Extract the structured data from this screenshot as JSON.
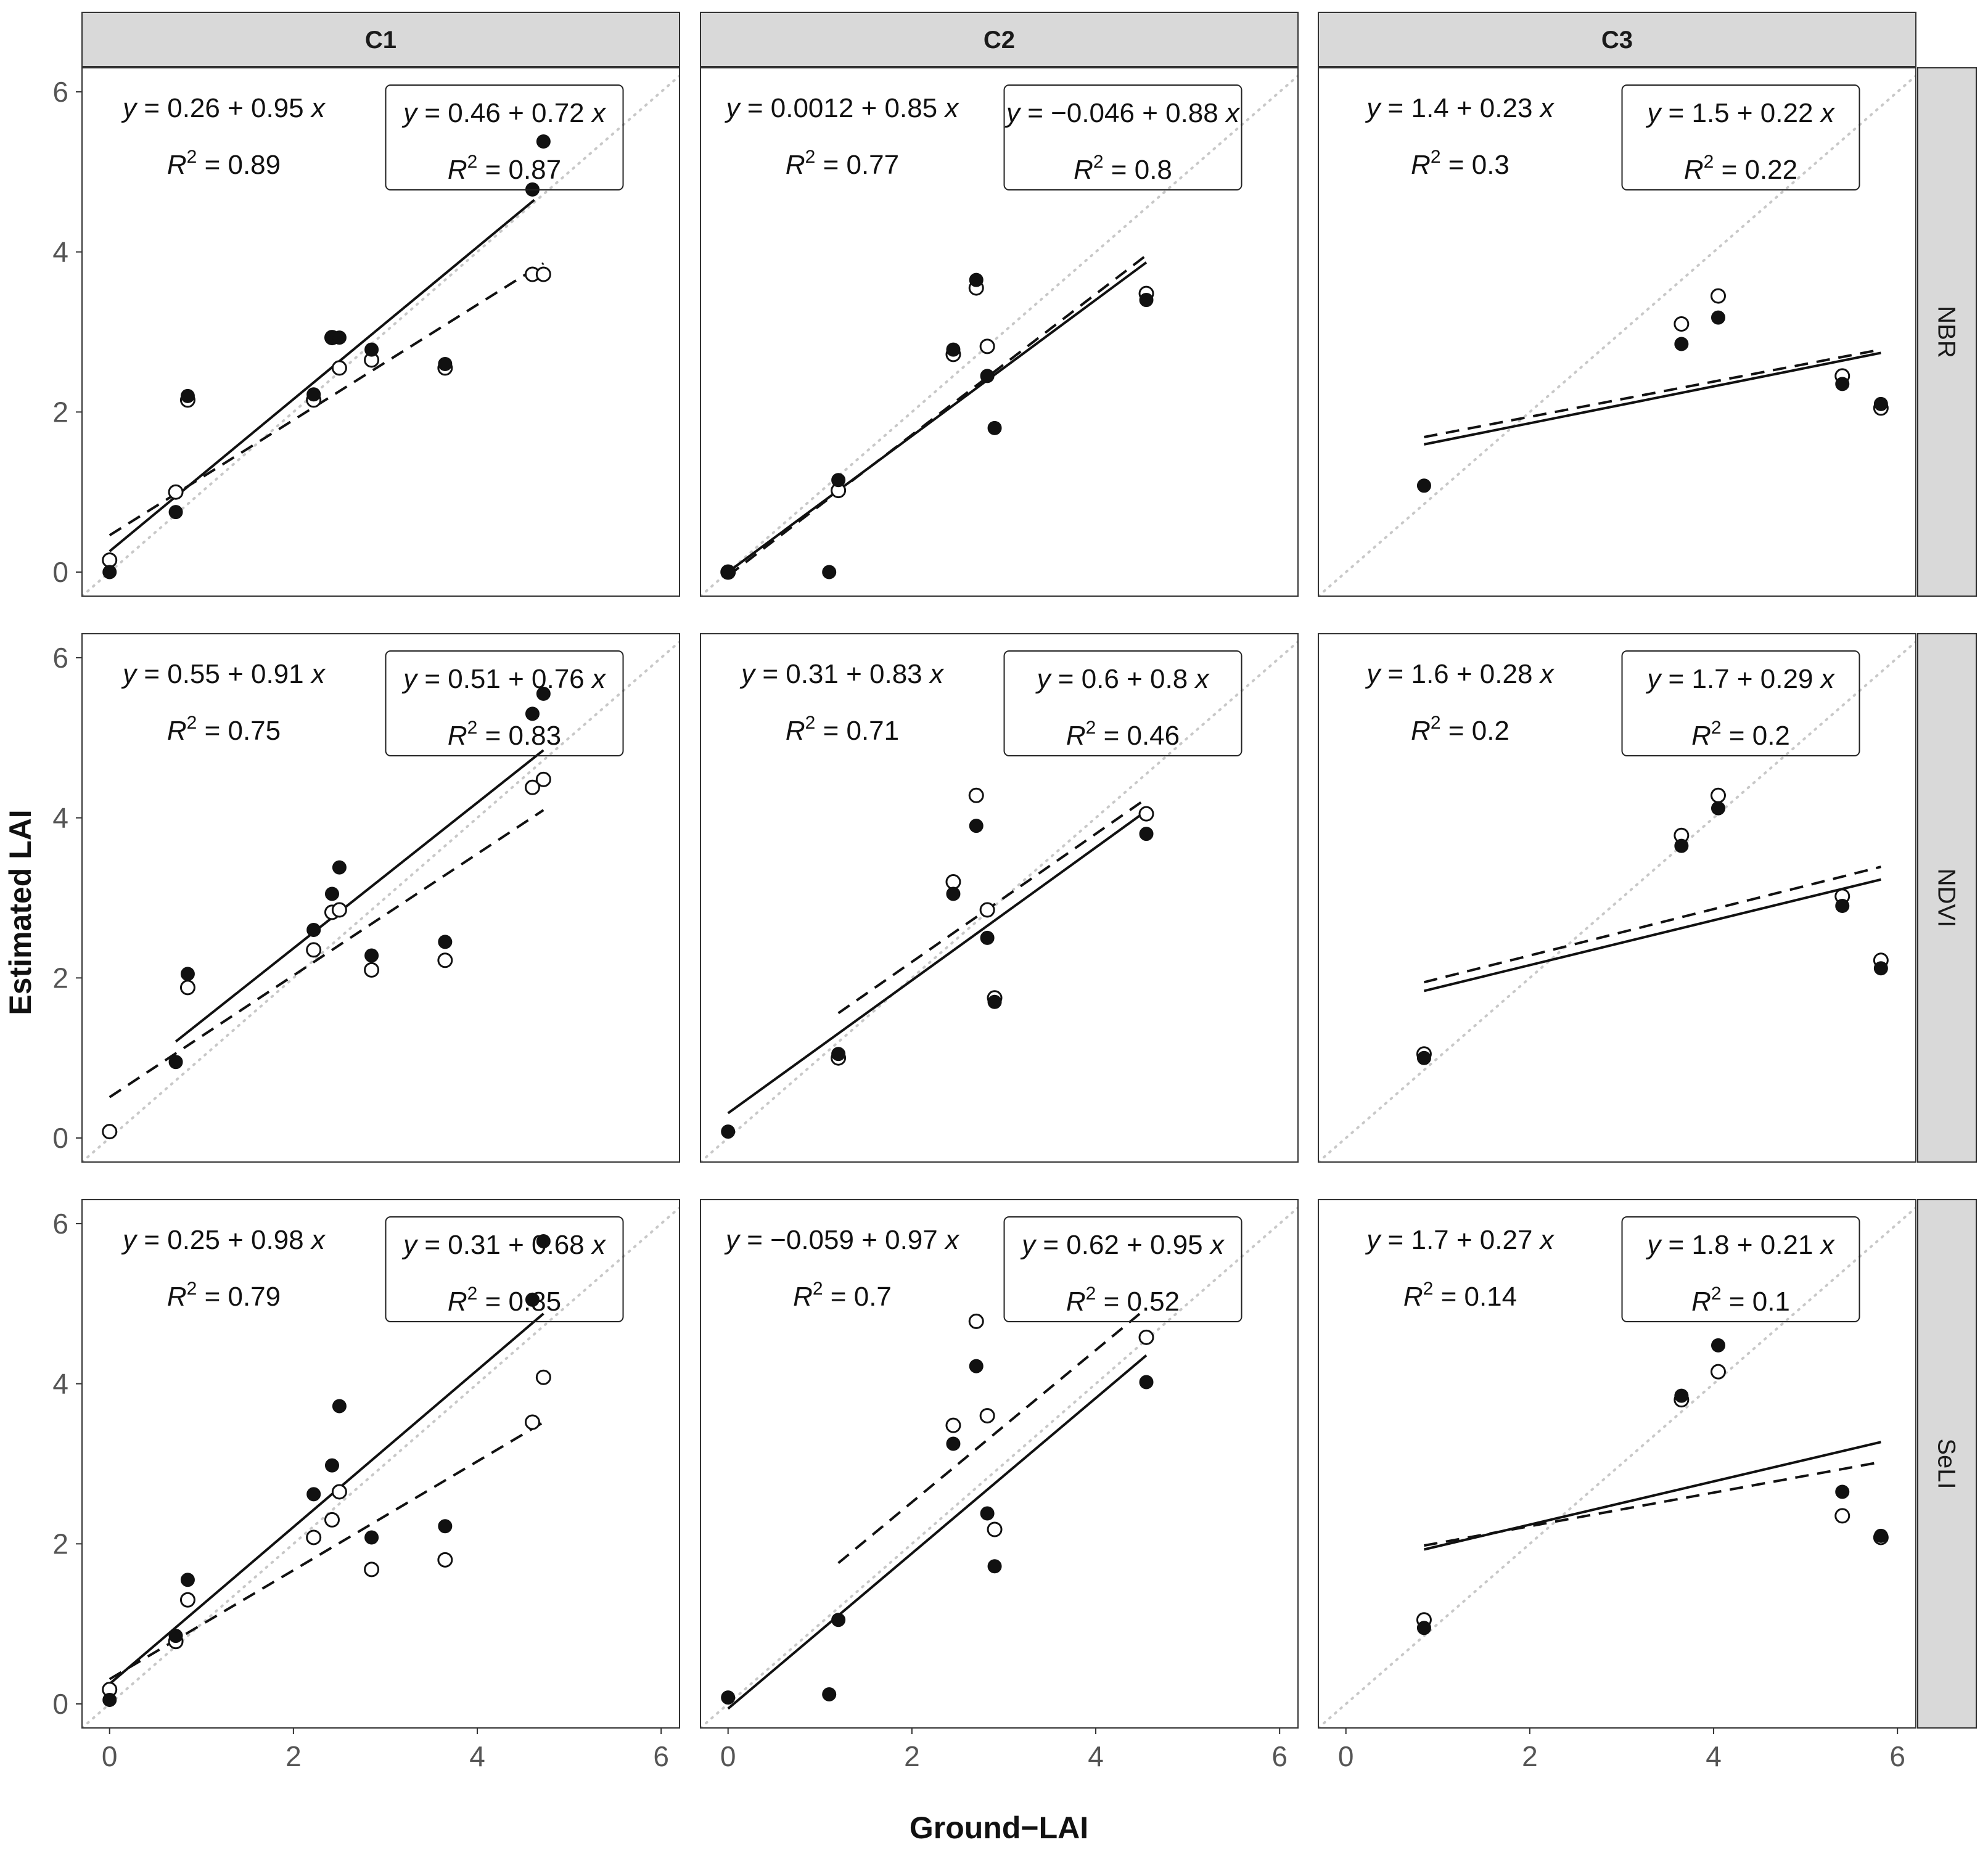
{
  "chart_data": {
    "type": "scatter",
    "xlabel": "Ground−LAI",
    "ylabel": "Estimated LAI",
    "xlim": [
      -0.3,
      6.2
    ],
    "ylim": [
      -0.3,
      6.3
    ],
    "xticks": [
      0,
      2,
      4,
      6
    ],
    "yticks": [
      0,
      2,
      4,
      6
    ],
    "columns": [
      "C1",
      "C2",
      "C3"
    ],
    "rows": [
      "NBR",
      "NDVI",
      "SeLI"
    ],
    "legend": "none",
    "grid": false,
    "reference_line": "1:1 dotted",
    "series_styles": {
      "filled": "solid circles, solid regression line",
      "open": "open circles, dashed regression line"
    },
    "panels": [
      {
        "col": "C1",
        "row": "NBR",
        "filled": {
          "x": [
            0,
            0.72,
            0.85,
            2.22,
            2.42,
            2.5,
            2.85,
            3.65,
            4.6,
            4.72
          ],
          "y": [
            0,
            0.75,
            2.2,
            2.22,
            2.93,
            2.93,
            2.78,
            2.6,
            4.78,
            5.38
          ]
        },
        "open": {
          "x": [
            0,
            0.72,
            0.85,
            2.22,
            2.42,
            2.5,
            2.85,
            3.65,
            4.6,
            4.72
          ],
          "y": [
            0.15,
            1.0,
            2.15,
            2.15,
            2.93,
            2.55,
            2.65,
            2.55,
            3.72,
            3.72
          ]
        },
        "fit_filled": {
          "intercept": 0.26,
          "slope": 0.95,
          "x_range": [
            0,
            4.62
          ]
        },
        "fit_open": {
          "intercept": 0.46,
          "slope": 0.72,
          "x_range": [
            0,
            4.72
          ]
        },
        "eq_filled": {
          "a": "0.26",
          "op": "+",
          "b": "0.95",
          "r2": "0.89"
        },
        "eq_open": {
          "a": "0.46",
          "op": "+",
          "b": "0.72",
          "r2": "0.87"
        }
      },
      {
        "col": "C2",
        "row": "NBR",
        "filled": {
          "x": [
            0,
            1.1,
            1.2,
            2.45,
            2.7,
            2.82,
            2.9,
            4.55
          ],
          "y": [
            0,
            0,
            1.15,
            2.78,
            3.65,
            2.45,
            1.8,
            3.4
          ]
        },
        "open": {
          "x": [
            0,
            1.2,
            2.45,
            2.7,
            2.82,
            4.55
          ],
          "y": [
            0,
            1.02,
            2.72,
            3.55,
            2.82,
            3.48
          ]
        },
        "fit_filled": {
          "intercept": 0.0012,
          "slope": 0.85,
          "x_range": [
            0,
            4.55
          ]
        },
        "fit_open": {
          "intercept": -0.046,
          "slope": 0.88,
          "x_range": [
            0,
            4.55
          ]
        },
        "eq_filled": {
          "a": "0.0012",
          "op": "+",
          "b": "0.85",
          "r2": "0.77"
        },
        "eq_open": {
          "a": "−0.046",
          "op": "+",
          "b": "0.88",
          "r2": "0.8"
        }
      },
      {
        "col": "C3",
        "row": "NBR",
        "filled": {
          "x": [
            0.85,
            3.65,
            4.05,
            5.4,
            5.82
          ],
          "y": [
            1.08,
            2.85,
            3.18,
            2.35,
            2.1
          ]
        },
        "open": {
          "x": [
            3.65,
            4.05,
            5.4,
            5.82
          ],
          "y": [
            3.1,
            3.45,
            2.45,
            2.05
          ]
        },
        "fit_filled": {
          "intercept": 1.4,
          "slope": 0.23,
          "x_range": [
            0.85,
            5.82
          ]
        },
        "fit_open": {
          "intercept": 1.5,
          "slope": 0.22,
          "x_range": [
            0.85,
            5.82
          ]
        },
        "eq_filled": {
          "a": "1.4",
          "op": "+",
          "b": "0.23",
          "r2": "0.3"
        },
        "eq_open": {
          "a": "1.5",
          "op": "+",
          "b": "0.22",
          "r2": "0.22"
        }
      },
      {
        "col": "C1",
        "row": "NDVI",
        "filled": {
          "x": [
            0.72,
            0.85,
            2.22,
            2.42,
            2.5,
            2.85,
            3.65,
            4.6,
            4.72
          ],
          "y": [
            0.95,
            2.05,
            2.6,
            3.05,
            3.38,
            2.28,
            2.45,
            5.3,
            5.55
          ]
        },
        "open": {
          "x": [
            0,
            0.85,
            2.22,
            2.42,
            2.5,
            2.85,
            3.65,
            4.6,
            4.72
          ],
          "y": [
            0.08,
            1.88,
            2.35,
            2.82,
            2.85,
            2.1,
            2.22,
            4.38,
            4.48
          ]
        },
        "fit_filled": {
          "intercept": 0.55,
          "slope": 0.91,
          "x_range": [
            0.72,
            4.72
          ]
        },
        "fit_open": {
          "intercept": 0.51,
          "slope": 0.76,
          "x_range": [
            0,
            4.72
          ]
        },
        "eq_filled": {
          "a": "0.55",
          "op": "+",
          "b": "0.91",
          "r2": "0.75"
        },
        "eq_open": {
          "a": "0.51",
          "op": "+",
          "b": "0.76",
          "r2": "0.83"
        }
      },
      {
        "col": "C2",
        "row": "NDVI",
        "filled": {
          "x": [
            0,
            1.2,
            2.45,
            2.7,
            2.82,
            2.9,
            4.55
          ],
          "y": [
            0.08,
            1.05,
            3.05,
            3.9,
            2.5,
            1.7,
            3.8
          ]
        },
        "open": {
          "x": [
            1.2,
            2.45,
            2.7,
            2.82,
            2.9,
            4.55
          ],
          "y": [
            1.0,
            3.2,
            4.28,
            2.85,
            1.75,
            4.05
          ]
        },
        "fit_filled": {
          "intercept": 0.31,
          "slope": 0.83,
          "x_range": [
            0,
            4.55
          ]
        },
        "fit_open": {
          "intercept": 0.6,
          "slope": 0.8,
          "x_range": [
            1.2,
            4.55
          ]
        },
        "eq_filled": {
          "a": "0.31",
          "op": "+",
          "b": "0.83",
          "r2": "0.71"
        },
        "eq_open": {
          "a": "0.6",
          "op": "+",
          "b": "0.8",
          "r2": "0.46"
        }
      },
      {
        "col": "C3",
        "row": "NDVI",
        "filled": {
          "x": [
            0.85,
            3.65,
            4.05,
            5.4,
            5.82
          ],
          "y": [
            1.0,
            3.65,
            4.12,
            2.9,
            2.12
          ]
        },
        "open": {
          "x": [
            0.85,
            3.65,
            4.05,
            5.4,
            5.82
          ],
          "y": [
            1.05,
            3.78,
            4.28,
            3.02,
            2.22
          ]
        },
        "fit_filled": {
          "intercept": 1.6,
          "slope": 0.28,
          "x_range": [
            0.85,
            5.82
          ]
        },
        "fit_open": {
          "intercept": 1.7,
          "slope": 0.29,
          "x_range": [
            0.85,
            5.82
          ]
        },
        "eq_filled": {
          "a": "1.6",
          "op": "+",
          "b": "0.28",
          "r2": "0.2"
        },
        "eq_open": {
          "a": "1.7",
          "op": "+",
          "b": "0.29",
          "r2": "0.2"
        }
      },
      {
        "col": "C1",
        "row": "SeLI",
        "filled": {
          "x": [
            0,
            0.72,
            0.85,
            2.22,
            2.42,
            2.5,
            2.85,
            3.65,
            4.6,
            4.72
          ],
          "y": [
            0.05,
            0.85,
            1.55,
            2.62,
            2.98,
            3.72,
            2.08,
            2.22,
            5.05,
            5.78
          ]
        },
        "open": {
          "x": [
            0,
            0.72,
            0.85,
            2.22,
            2.42,
            2.5,
            2.85,
            3.65,
            4.6,
            4.72
          ],
          "y": [
            0.18,
            0.78,
            1.3,
            2.08,
            2.3,
            2.65,
            1.68,
            1.8,
            3.52,
            4.08
          ]
        },
        "fit_filled": {
          "intercept": 0.25,
          "slope": 0.98,
          "x_range": [
            0,
            4.72
          ]
        },
        "fit_open": {
          "intercept": 0.31,
          "slope": 0.68,
          "x_range": [
            0,
            4.72
          ]
        },
        "eq_filled": {
          "a": "0.25",
          "op": "+",
          "b": "0.98",
          "r2": "0.79"
        },
        "eq_open": {
          "a": "0.31",
          "op": "+",
          "b": "0.68",
          "r2": "0.85"
        }
      },
      {
        "col": "C2",
        "row": "SeLI",
        "filled": {
          "x": [
            0,
            1.1,
            1.2,
            2.45,
            2.7,
            2.82,
            2.9,
            4.55
          ],
          "y": [
            0.08,
            0.12,
            1.05,
            3.25,
            4.22,
            2.38,
            1.72,
            4.02
          ]
        },
        "open": {
          "x": [
            2.45,
            2.7,
            2.82,
            2.9,
            4.55
          ],
          "y": [
            3.48,
            4.78,
            3.6,
            2.18,
            4.58
          ]
        },
        "fit_filled": {
          "intercept": -0.059,
          "slope": 0.97,
          "x_range": [
            0,
            4.55
          ]
        },
        "fit_open": {
          "intercept": 0.62,
          "slope": 0.95,
          "x_range": [
            1.2,
            4.55
          ]
        },
        "eq_filled": {
          "a": "−0.059",
          "op": "+",
          "b": "0.97",
          "r2": "0.7"
        },
        "eq_open": {
          "a": "0.62",
          "op": "+",
          "b": "0.95",
          "r2": "0.52"
        }
      },
      {
        "col": "C3",
        "row": "SeLI",
        "filled": {
          "x": [
            0.85,
            3.65,
            4.05,
            5.4,
            5.82
          ],
          "y": [
            0.95,
            3.85,
            4.48,
            2.65,
            2.1
          ]
        },
        "open": {
          "x": [
            0.85,
            3.65,
            4.05,
            5.4,
            5.82
          ],
          "y": [
            1.05,
            3.8,
            4.15,
            2.35,
            2.08
          ]
        },
        "fit_filled": {
          "intercept": 1.7,
          "slope": 0.27,
          "x_range": [
            0.85,
            5.82
          ]
        },
        "fit_open": {
          "intercept": 1.8,
          "slope": 0.21,
          "x_range": [
            0.85,
            5.82
          ]
        },
        "eq_filled": {
          "a": "1.7",
          "op": "+",
          "b": "0.27",
          "r2": "0.14"
        },
        "eq_open": {
          "a": "1.8",
          "op": "+",
          "b": "0.21",
          "r2": "0.1"
        }
      }
    ]
  }
}
